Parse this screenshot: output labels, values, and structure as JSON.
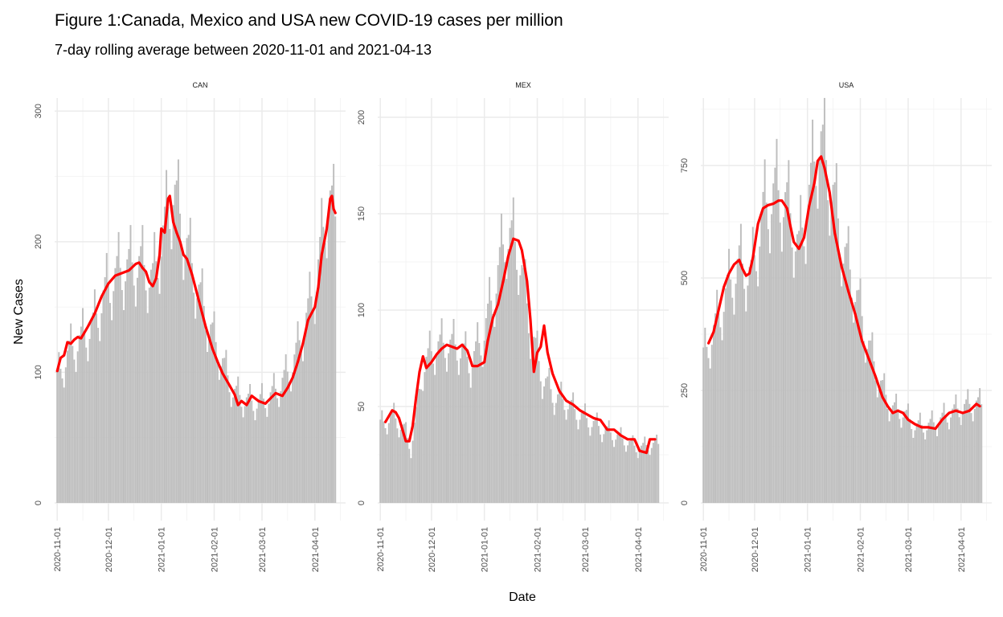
{
  "chart_data": {
    "type": "bar",
    "title": "Figure 1:Canada, Mexico and USA new COVID-19 cases per million",
    "subtitle": "7-day rolling average between 2020-11-01 and 2021-04-13",
    "xlabel": "Date",
    "ylabel": "New Cases",
    "bar_color": "#bebebe",
    "line_color": "#ff0000",
    "x_range": [
      "2020-11-01",
      "2021-04-13"
    ],
    "x_ticks": [
      "2020-11-01",
      "2020-12-01",
      "2021-01-01",
      "2021-02-01",
      "2021-03-01",
      "2021-04-01"
    ],
    "facets": [
      {
        "label": "CAN",
        "ylim": [
          0,
          310
        ],
        "y_ticks": [
          0,
          100,
          200,
          300
        ],
        "daily_anchors": [
          [
            "2020-11-01",
            95
          ],
          [
            "2020-11-08",
            115
          ],
          [
            "2020-11-15",
            125
          ],
          [
            "2020-11-22",
            135
          ],
          [
            "2020-11-29",
            160
          ],
          [
            "2020-12-06",
            175
          ],
          [
            "2020-12-13",
            180
          ],
          [
            "2020-12-20",
            182
          ],
          [
            "2020-12-27",
            170
          ],
          [
            "2021-01-03",
            210
          ],
          [
            "2021-01-08",
            240
          ],
          [
            "2021-01-15",
            200
          ],
          [
            "2021-01-22",
            165
          ],
          [
            "2021-01-29",
            135
          ],
          [
            "2021-02-05",
            110
          ],
          [
            "2021-02-12",
            85
          ],
          [
            "2021-02-19",
            78
          ],
          [
            "2021-02-26",
            76
          ],
          [
            "2021-03-05",
            80
          ],
          [
            "2021-03-12",
            90
          ],
          [
            "2021-03-19",
            105
          ],
          [
            "2021-03-26",
            135
          ],
          [
            "2021-04-02",
            170
          ],
          [
            "2021-04-09",
            235
          ],
          [
            "2021-04-13",
            215
          ]
        ],
        "rolling_avg": [
          [
            "2020-11-01",
            101
          ],
          [
            "2020-11-03",
            111
          ],
          [
            "2020-11-05",
            113
          ],
          [
            "2020-11-07",
            123
          ],
          [
            "2020-11-09",
            122
          ],
          [
            "2020-11-11",
            125
          ],
          [
            "2020-11-13",
            127
          ],
          [
            "2020-11-15",
            126
          ],
          [
            "2020-11-19",
            135
          ],
          [
            "2020-11-23",
            145
          ],
          [
            "2020-11-27",
            158
          ],
          [
            "2020-12-01",
            168
          ],
          [
            "2020-12-05",
            174
          ],
          [
            "2020-12-09",
            176
          ],
          [
            "2020-12-13",
            178
          ],
          [
            "2020-12-17",
            183
          ],
          [
            "2020-12-19",
            184
          ],
          [
            "2020-12-21",
            180
          ],
          [
            "2020-12-23",
            177
          ],
          [
            "2020-12-25",
            169
          ],
          [
            "2020-12-27",
            166
          ],
          [
            "2020-12-29",
            172
          ],
          [
            "2020-12-31",
            190
          ],
          [
            "2021-01-01",
            210
          ],
          [
            "2021-01-03",
            207
          ],
          [
            "2021-01-04",
            220
          ],
          [
            "2021-01-05",
            233
          ],
          [
            "2021-01-06",
            235
          ],
          [
            "2021-01-08",
            215
          ],
          [
            "2021-01-10",
            207
          ],
          [
            "2021-01-12",
            200
          ],
          [
            "2021-01-14",
            190
          ],
          [
            "2021-01-16",
            187
          ],
          [
            "2021-01-19",
            175
          ],
          [
            "2021-01-23",
            155
          ],
          [
            "2021-01-27",
            135
          ],
          [
            "2021-01-31",
            118
          ],
          [
            "2021-02-03",
            108
          ],
          [
            "2021-02-06",
            99
          ],
          [
            "2021-02-10",
            90
          ],
          [
            "2021-02-13",
            83
          ],
          [
            "2021-02-15",
            75
          ],
          [
            "2021-02-17",
            78
          ],
          [
            "2021-02-20",
            75
          ],
          [
            "2021-02-23",
            82
          ],
          [
            "2021-02-27",
            78
          ],
          [
            "2021-03-03",
            76
          ],
          [
            "2021-03-06",
            80
          ],
          [
            "2021-03-09",
            84
          ],
          [
            "2021-03-13",
            82
          ],
          [
            "2021-03-16",
            88
          ],
          [
            "2021-03-19",
            96
          ],
          [
            "2021-03-22",
            108
          ],
          [
            "2021-03-25",
            122
          ],
          [
            "2021-03-28",
            140
          ],
          [
            "2021-03-30",
            145
          ],
          [
            "2021-04-01",
            150
          ],
          [
            "2021-04-03",
            165
          ],
          [
            "2021-04-05",
            190
          ],
          [
            "2021-04-08",
            210
          ],
          [
            "2021-04-10",
            233
          ],
          [
            "2021-04-11",
            235
          ],
          [
            "2021-04-12",
            225
          ],
          [
            "2021-04-13",
            222
          ]
        ]
      },
      {
        "label": "MEX",
        "ylim": [
          0,
          210
        ],
        "y_ticks": [
          0,
          50,
          100,
          150,
          200
        ],
        "daily_anchors": [
          [
            "2020-11-01",
            40
          ],
          [
            "2020-11-08",
            45
          ],
          [
            "2020-11-15",
            38
          ],
          [
            "2020-11-19",
            28
          ],
          [
            "2020-11-26",
            70
          ],
          [
            "2020-12-03",
            80
          ],
          [
            "2020-12-10",
            82
          ],
          [
            "2020-12-17",
            80
          ],
          [
            "2020-12-24",
            72
          ],
          [
            "2020-12-31",
            85
          ],
          [
            "2021-01-07",
            110
          ],
          [
            "2021-01-14",
            140
          ],
          [
            "2021-01-21",
            130
          ],
          [
            "2021-01-28",
            90
          ],
          [
            "2021-02-04",
            65
          ],
          [
            "2021-02-11",
            55
          ],
          [
            "2021-02-18",
            52
          ],
          [
            "2021-02-25",
            46
          ],
          [
            "2021-03-04",
            42
          ],
          [
            "2021-03-11",
            38
          ],
          [
            "2021-03-18",
            35
          ],
          [
            "2021-03-25",
            32
          ],
          [
            "2021-04-01",
            28
          ],
          [
            "2021-04-08",
            30
          ],
          [
            "2021-04-13",
            30
          ]
        ],
        "rolling_avg": [
          [
            "2020-11-04",
            42
          ],
          [
            "2020-11-06",
            45
          ],
          [
            "2020-11-08",
            48
          ],
          [
            "2020-11-10",
            47
          ],
          [
            "2020-11-12",
            44
          ],
          [
            "2020-11-14",
            38
          ],
          [
            "2020-11-16",
            32
          ],
          [
            "2020-11-18",
            32
          ],
          [
            "2020-11-20",
            40
          ],
          [
            "2020-11-22",
            55
          ],
          [
            "2020-11-24",
            68
          ],
          [
            "2020-11-26",
            76
          ],
          [
            "2020-11-28",
            70
          ],
          [
            "2020-12-01",
            73
          ],
          [
            "2020-12-04",
            77
          ],
          [
            "2020-12-07",
            80
          ],
          [
            "2020-12-10",
            82
          ],
          [
            "2020-12-13",
            81
          ],
          [
            "2020-12-16",
            80
          ],
          [
            "2020-12-19",
            82
          ],
          [
            "2020-12-22",
            79
          ],
          [
            "2020-12-25",
            71
          ],
          [
            "2020-12-28",
            71
          ],
          [
            "2021-01-01",
            73
          ],
          [
            "2021-01-03",
            84
          ],
          [
            "2021-01-06",
            96
          ],
          [
            "2021-01-09",
            103
          ],
          [
            "2021-01-12",
            115
          ],
          [
            "2021-01-15",
            128
          ],
          [
            "2021-01-18",
            137
          ],
          [
            "2021-01-21",
            136
          ],
          [
            "2021-01-23",
            131
          ],
          [
            "2021-01-26",
            115
          ],
          [
            "2021-01-28",
            95
          ],
          [
            "2021-01-30",
            68
          ],
          [
            "2021-02-01",
            78
          ],
          [
            "2021-02-03",
            81
          ],
          [
            "2021-02-05",
            92
          ],
          [
            "2021-02-07",
            78
          ],
          [
            "2021-02-10",
            67
          ],
          [
            "2021-02-14",
            58
          ],
          [
            "2021-02-18",
            53
          ],
          [
            "2021-02-22",
            51
          ],
          [
            "2021-02-26",
            48
          ],
          [
            "2021-03-02",
            46
          ],
          [
            "2021-03-06",
            44
          ],
          [
            "2021-03-10",
            43
          ],
          [
            "2021-03-14",
            38
          ],
          [
            "2021-03-18",
            38
          ],
          [
            "2021-03-22",
            35
          ],
          [
            "2021-03-26",
            33
          ],
          [
            "2021-03-30",
            33
          ],
          [
            "2021-04-02",
            27
          ],
          [
            "2021-04-06",
            26
          ],
          [
            "2021-04-08",
            33
          ],
          [
            "2021-04-11",
            33
          ]
        ]
      },
      {
        "label": "USA",
        "ylim": [
          0,
          900
        ],
        "y_ticks": [
          0,
          250,
          500,
          750
        ],
        "daily_anchors": [
          [
            "2020-11-01",
            320
          ],
          [
            "2020-11-08",
            390
          ],
          [
            "2020-11-15",
            470
          ],
          [
            "2020-11-22",
            530
          ],
          [
            "2020-11-29",
            500
          ],
          [
            "2020-12-06",
            640
          ],
          [
            "2020-12-13",
            690
          ],
          [
            "2020-12-20",
            660
          ],
          [
            "2020-12-27",
            560
          ],
          [
            "2021-01-03",
            700
          ],
          [
            "2021-01-08",
            810
          ],
          [
            "2021-01-15",
            700
          ],
          [
            "2021-01-22",
            560
          ],
          [
            "2021-01-29",
            470
          ],
          [
            "2021-02-05",
            360
          ],
          [
            "2021-02-12",
            270
          ],
          [
            "2021-02-19",
            210
          ],
          [
            "2021-02-26",
            200
          ],
          [
            "2021-03-05",
            170
          ],
          [
            "2021-03-12",
            170
          ],
          [
            "2021-03-19",
            180
          ],
          [
            "2021-03-26",
            200
          ],
          [
            "2021-04-02",
            210
          ],
          [
            "2021-04-09",
            220
          ],
          [
            "2021-04-13",
            215
          ]
        ],
        "rolling_avg": [
          [
            "2020-11-04",
            355
          ],
          [
            "2020-11-07",
            380
          ],
          [
            "2020-11-10",
            430
          ],
          [
            "2020-11-13",
            480
          ],
          [
            "2020-11-16",
            510
          ],
          [
            "2020-11-19",
            530
          ],
          [
            "2020-11-22",
            540
          ],
          [
            "2020-11-24",
            520
          ],
          [
            "2020-11-26",
            505
          ],
          [
            "2020-11-28",
            510
          ],
          [
            "2020-11-30",
            545
          ],
          [
            "2020-12-03",
            620
          ],
          [
            "2020-12-06",
            655
          ],
          [
            "2020-12-09",
            662
          ],
          [
            "2020-12-12",
            665
          ],
          [
            "2020-12-15",
            672
          ],
          [
            "2020-12-17",
            672
          ],
          [
            "2020-12-20",
            655
          ],
          [
            "2020-12-22",
            615
          ],
          [
            "2020-12-24",
            580
          ],
          [
            "2020-12-27",
            565
          ],
          [
            "2020-12-30",
            590
          ],
          [
            "2021-01-02",
            660
          ],
          [
            "2021-01-05",
            710
          ],
          [
            "2021-01-07",
            760
          ],
          [
            "2021-01-09",
            770
          ],
          [
            "2021-01-11",
            745
          ],
          [
            "2021-01-14",
            690
          ],
          [
            "2021-01-17",
            600
          ],
          [
            "2021-01-21",
            525
          ],
          [
            "2021-01-25",
            470
          ],
          [
            "2021-01-29",
            420
          ],
          [
            "2021-02-02",
            360
          ],
          [
            "2021-02-06",
            320
          ],
          [
            "2021-02-10",
            280
          ],
          [
            "2021-02-14",
            235
          ],
          [
            "2021-02-17",
            215
          ],
          [
            "2021-02-20",
            200
          ],
          [
            "2021-02-23",
            205
          ],
          [
            "2021-02-26",
            200
          ],
          [
            "2021-03-01",
            185
          ],
          [
            "2021-03-05",
            175
          ],
          [
            "2021-03-09",
            168
          ],
          [
            "2021-03-13",
            168
          ],
          [
            "2021-03-17",
            165
          ],
          [
            "2021-03-21",
            185
          ],
          [
            "2021-03-25",
            200
          ],
          [
            "2021-03-29",
            205
          ],
          [
            "2021-04-02",
            200
          ],
          [
            "2021-04-06",
            205
          ],
          [
            "2021-04-10",
            220
          ],
          [
            "2021-04-12",
            215
          ]
        ]
      }
    ]
  }
}
